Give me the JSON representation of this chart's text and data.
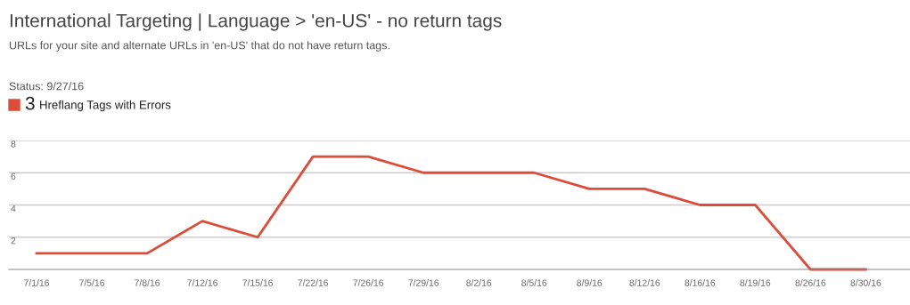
{
  "chart_data": {
    "type": "line",
    "title": "International Targeting | Language > 'en-US' - no return tags",
    "subtitle": "URLs for your site and alternate URLs in 'en-US' that do not have return tags.",
    "annotations": [
      "Status: 9/27/16",
      "3"
    ],
    "categories": [
      "7/1/16",
      "7/5/16",
      "7/8/16",
      "7/12/16",
      "7/15/16",
      "7/22/16",
      "7/26/16",
      "7/29/16",
      "8/2/16",
      "8/5/16",
      "8/9/16",
      "8/12/16",
      "8/16/16",
      "8/19/16",
      "8/26/16",
      "8/30/16"
    ],
    "series": [
      {
        "name": "Hreflang Tags with Errors",
        "color": "#dd4b39",
        "values": [
          1,
          1,
          1,
          3,
          2,
          7,
          7,
          6,
          6,
          6,
          5,
          5,
          4,
          4,
          0,
          0
        ]
      }
    ],
    "ylim": [
      0,
      8
    ],
    "yticks": [
      2,
      4,
      6,
      8
    ],
    "grid": "y",
    "legend": "top left",
    "marker": "none",
    "line_style": "solid"
  }
}
